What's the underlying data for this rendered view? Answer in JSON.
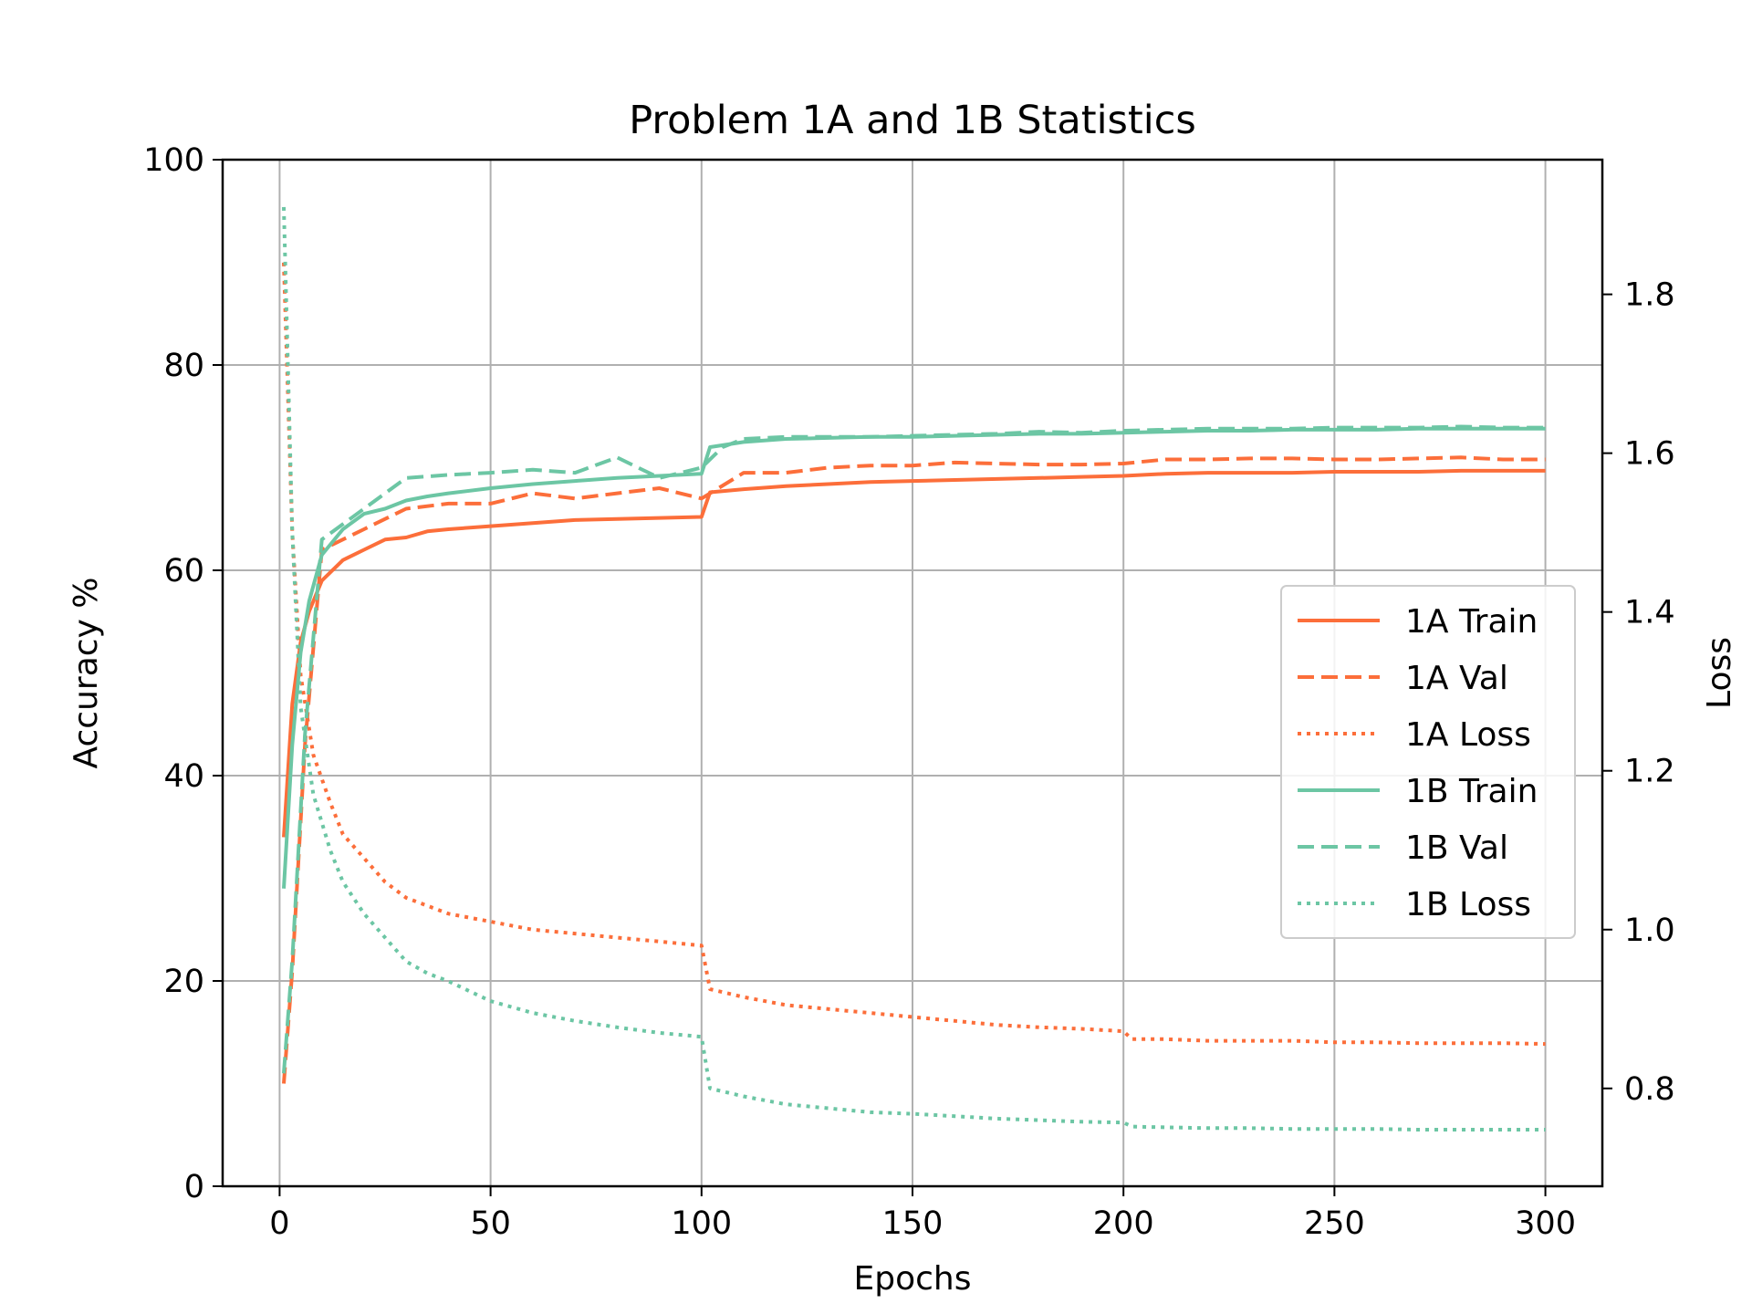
{
  "chart_data": {
    "type": "line",
    "title": "Problem 1A and 1B Statistics",
    "xlabel": "Epochs",
    "ylabel": "Accuracy %",
    "y2label": "Loss",
    "xlim": [
      -13.5,
      313.5
    ],
    "ylim": [
      0,
      100
    ],
    "y2lim": [
      0.6768,
      1.9696
    ],
    "xticks": [
      0,
      50,
      100,
      150,
      200,
      250,
      300
    ],
    "yticks": [
      0,
      20,
      40,
      60,
      80,
      100
    ],
    "y2ticks": [
      0.8,
      1.0,
      1.2,
      1.4,
      1.6,
      1.8
    ],
    "y2ticklabels": [
      "0.8",
      "1.0",
      "1.2",
      "1.4",
      "1.6",
      "1.8"
    ],
    "grid": true,
    "legend_position": "center-right",
    "colors": {
      "1A": "#fc6e3a",
      "1B": "#6cc6a4",
      "grid": "#b0b0b0"
    },
    "series": [
      {
        "name": "1A Train",
        "axis": "left",
        "style": "solid",
        "color": "#fc6e3a",
        "x": [
          1,
          3,
          5,
          7,
          10,
          15,
          20,
          25,
          30,
          35,
          40,
          50,
          60,
          70,
          80,
          90,
          100,
          102,
          110,
          120,
          130,
          140,
          150,
          160,
          170,
          180,
          190,
          200,
          210,
          220,
          230,
          240,
          250,
          260,
          270,
          280,
          290,
          300
        ],
        "y": [
          34,
          47,
          53,
          56,
          59,
          61,
          62,
          63,
          63.2,
          63.8,
          64,
          64.3,
          64.6,
          64.9,
          65,
          65.1,
          65.2,
          67.6,
          67.9,
          68.2,
          68.4,
          68.6,
          68.7,
          68.8,
          68.9,
          69,
          69.1,
          69.2,
          69.4,
          69.5,
          69.5,
          69.5,
          69.6,
          69.6,
          69.6,
          69.7,
          69.7,
          69.7
        ]
      },
      {
        "name": "1A Val",
        "axis": "left",
        "style": "dashed",
        "color": "#fc6e3a",
        "x": [
          1,
          3,
          6,
          10,
          20,
          30,
          40,
          50,
          60,
          70,
          80,
          90,
          100,
          110,
          120,
          130,
          140,
          150,
          160,
          170,
          180,
          190,
          200,
          210,
          220,
          230,
          240,
          250,
          260,
          270,
          280,
          290,
          300
        ],
        "y": [
          10,
          21,
          43,
          62,
          64,
          66,
          66.5,
          66.5,
          67.5,
          67,
          67.5,
          68,
          67,
          69.5,
          69.5,
          70,
          70.2,
          70.2,
          70.5,
          70.4,
          70.3,
          70.3,
          70.4,
          70.8,
          70.8,
          70.9,
          70.9,
          70.8,
          70.8,
          70.9,
          71,
          70.8,
          70.8
        ]
      },
      {
        "name": "1A Loss",
        "axis": "right",
        "style": "dotted",
        "color": "#fc6e3a",
        "x": [
          1,
          3,
          5,
          8,
          12,
          15,
          20,
          25,
          30,
          35,
          40,
          50,
          60,
          70,
          80,
          90,
          100,
          102,
          110,
          120,
          130,
          140,
          150,
          160,
          170,
          180,
          190,
          200,
          202,
          210,
          220,
          230,
          240,
          250,
          260,
          270,
          280,
          290,
          300
        ],
        "y": [
          1.84,
          1.5,
          1.32,
          1.22,
          1.16,
          1.12,
          1.09,
          1.06,
          1.04,
          1.03,
          1.02,
          1.01,
          1.0,
          0.995,
          0.99,
          0.985,
          0.98,
          0.925,
          0.915,
          0.905,
          0.9,
          0.895,
          0.89,
          0.885,
          0.88,
          0.877,
          0.875,
          0.872,
          0.862,
          0.862,
          0.86,
          0.86,
          0.86,
          0.858,
          0.858,
          0.857,
          0.857,
          0.857,
          0.856
        ]
      },
      {
        "name": "1B Train",
        "axis": "left",
        "style": "solid",
        "color": "#6cc6a4",
        "x": [
          1,
          3,
          5,
          7,
          10,
          15,
          20,
          25,
          30,
          35,
          40,
          50,
          60,
          70,
          80,
          90,
          100,
          102,
          110,
          120,
          130,
          140,
          150,
          160,
          170,
          180,
          190,
          200,
          210,
          220,
          230,
          240,
          250,
          260,
          270,
          280,
          290,
          300
        ],
        "y": [
          29,
          43,
          52,
          57,
          61.5,
          64,
          65.5,
          66,
          66.8,
          67.2,
          67.5,
          68,
          68.4,
          68.7,
          69,
          69.2,
          69.4,
          72,
          72.5,
          72.8,
          72.9,
          73,
          73,
          73.1,
          73.2,
          73.3,
          73.3,
          73.4,
          73.5,
          73.6,
          73.6,
          73.7,
          73.7,
          73.7,
          73.8,
          73.8,
          73.8,
          73.8
        ]
      },
      {
        "name": "1B Val",
        "axis": "left",
        "style": "dashed",
        "color": "#6cc6a4",
        "x": [
          1,
          3,
          6,
          10,
          20,
          30,
          40,
          50,
          60,
          70,
          80,
          90,
          100,
          105,
          110,
          120,
          130,
          140,
          150,
          160,
          170,
          180,
          190,
          200,
          210,
          220,
          230,
          240,
          250,
          260,
          270,
          280,
          290,
          300
        ],
        "y": [
          11,
          22,
          44,
          63,
          66,
          69,
          69.3,
          69.5,
          69.8,
          69.5,
          71,
          69,
          70,
          72,
          72.8,
          73,
          73,
          73,
          73.1,
          73.2,
          73.3,
          73.5,
          73.4,
          73.6,
          73.7,
          73.8,
          73.8,
          73.8,
          73.9,
          73.9,
          73.9,
          74,
          73.9,
          73.9
        ]
      },
      {
        "name": "1B Loss",
        "axis": "right",
        "style": "dotted",
        "color": "#6cc6a4",
        "x": [
          1,
          3,
          5,
          8,
          12,
          15,
          20,
          25,
          30,
          35,
          40,
          50,
          60,
          70,
          80,
          90,
          100,
          102,
          110,
          120,
          130,
          140,
          150,
          160,
          170,
          180,
          190,
          200,
          202,
          210,
          220,
          230,
          240,
          250,
          260,
          270,
          280,
          290,
          300
        ],
        "y": [
          1.91,
          1.5,
          1.28,
          1.17,
          1.1,
          1.06,
          1.02,
          0.99,
          0.96,
          0.945,
          0.935,
          0.91,
          0.895,
          0.885,
          0.877,
          0.87,
          0.865,
          0.8,
          0.79,
          0.78,
          0.775,
          0.77,
          0.768,
          0.765,
          0.762,
          0.76,
          0.758,
          0.757,
          0.752,
          0.751,
          0.75,
          0.75,
          0.749,
          0.749,
          0.749,
          0.748,
          0.748,
          0.748,
          0.748
        ]
      }
    ]
  }
}
